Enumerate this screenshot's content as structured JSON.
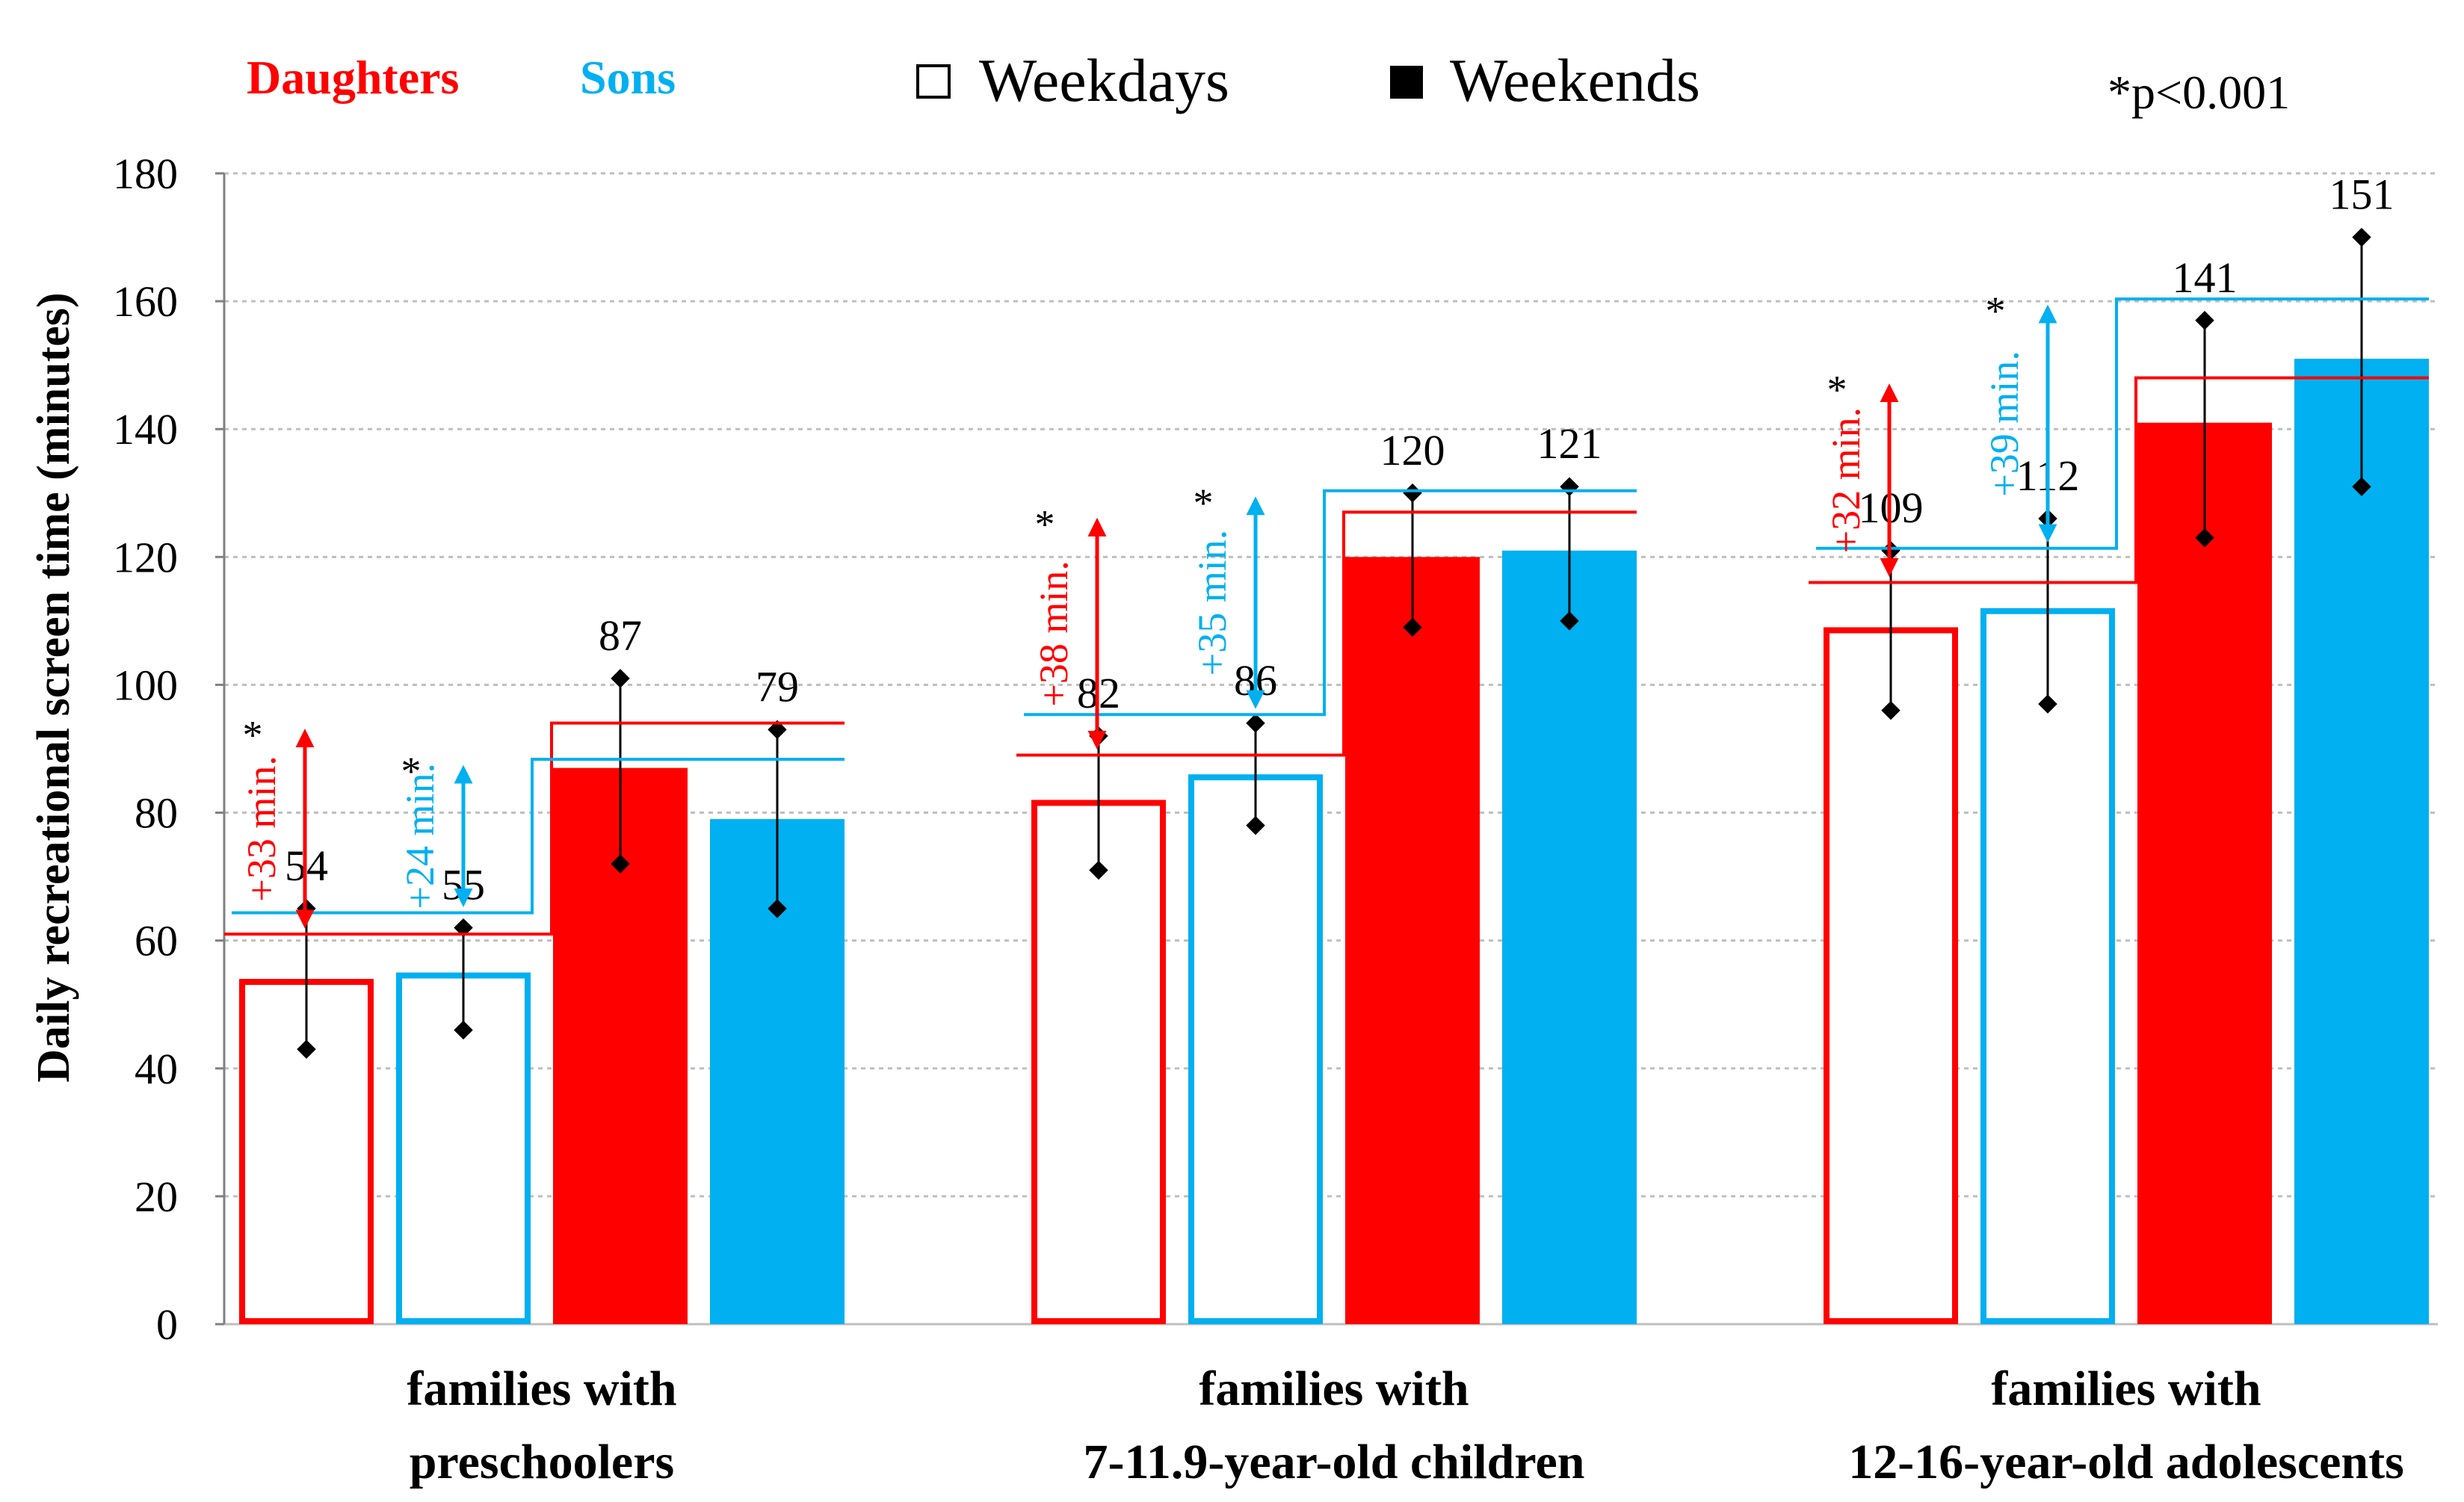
{
  "chart_data": {
    "type": "bar",
    "ylabel": "Daily recreational screen time (minutes)",
    "ylim": [
      0,
      180
    ],
    "yticks": [
      0,
      20,
      40,
      60,
      80,
      100,
      120,
      140,
      160,
      180
    ],
    "grid": true,
    "legend": {
      "daughters": "Daughters",
      "sons": "Sons",
      "weekdays": "Weekdays",
      "weekends": "Weekends"
    },
    "significance_note": "*p<0.001",
    "groups": [
      {
        "label_lines": [
          "families with",
          "preschoolers"
        ],
        "bars": [
          {
            "series": "Daughters Weekdays",
            "value": 54,
            "label": "54",
            "err_low": 43,
            "err_high": 65
          },
          {
            "series": "Sons Weekdays",
            "value": 55,
            "label": "55",
            "err_low": 46,
            "err_high": 62
          },
          {
            "series": "Daughters Weekends",
            "value": 87,
            "label": "87",
            "err_low": 72,
            "err_high": 101
          },
          {
            "series": "Sons Weekends",
            "value": 79,
            "label": "79",
            "err_low": 65,
            "err_high": 93
          }
        ],
        "differences": [
          {
            "who": "daughters",
            "label": "+33 min.",
            "star": "*"
          },
          {
            "who": "sons",
            "label": "+24 min.",
            "star": "*"
          }
        ]
      },
      {
        "label_lines": [
          "families with",
          "7-11.9-year-old children"
        ],
        "bars": [
          {
            "series": "Daughters Weekdays",
            "value": 82,
            "label": "82",
            "err_low": 71,
            "err_high": 92
          },
          {
            "series": "Sons Weekdays",
            "value": 86,
            "label": "86",
            "err_low": 78,
            "err_high": 94
          },
          {
            "series": "Daughters Weekends",
            "value": 120,
            "label": "120",
            "err_low": 109,
            "err_high": 130
          },
          {
            "series": "Sons Weekends",
            "value": 121,
            "label": "121",
            "err_low": 110,
            "err_high": 131
          }
        ],
        "differences": [
          {
            "who": "daughters",
            "label": "+38 min.",
            "star": "*"
          },
          {
            "who": "sons",
            "label": "+35 min.",
            "star": "*"
          }
        ]
      },
      {
        "label_lines": [
          "families with",
          "12-16-year-old adolescents"
        ],
        "bars": [
          {
            "series": "Daughters Weekdays",
            "value": 109,
            "label": "109",
            "err_low": 96,
            "err_high": 121
          },
          {
            "series": "Sons Weekdays",
            "value": 112,
            "label": "112",
            "err_low": 97,
            "err_high": 126
          },
          {
            "series": "Daughters Weekends",
            "value": 141,
            "label": "141",
            "err_low": 123,
            "err_high": 157
          },
          {
            "series": "Sons Weekends",
            "value": 151,
            "label": "151",
            "err_low": 131,
            "err_high": 170
          }
        ],
        "differences": [
          {
            "who": "daughters",
            "label": "+32 min.",
            "star": "*"
          },
          {
            "who": "sons",
            "label": "+39 min.",
            "star": "*"
          }
        ]
      }
    ],
    "colors": {
      "daughters": "#ff0000",
      "sons": "#00b0f0",
      "text": "#000000",
      "grid": "#bfbfbf"
    }
  }
}
